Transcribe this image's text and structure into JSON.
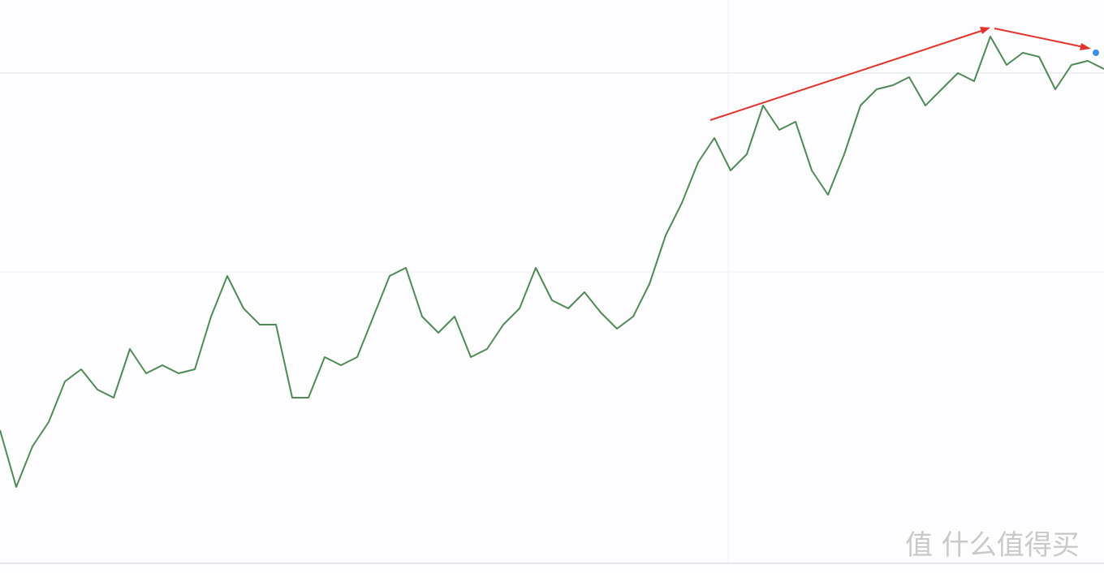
{
  "chart_data": {
    "type": "line",
    "values": [
      176,
      106,
      156,
      186,
      236,
      251,
      226,
      216,
      276,
      246,
      256,
      246,
      251,
      316,
      366,
      326,
      306,
      306,
      216,
      216,
      266,
      256,
      266,
      316,
      366,
      376,
      316,
      296,
      316,
      266,
      276,
      306,
      326,
      376,
      336,
      326,
      346,
      321,
      301,
      316,
      356,
      416,
      456,
      506,
      536,
      496,
      516,
      576,
      546,
      556,
      496,
      466,
      516,
      576,
      596,
      601,
      611,
      576,
      596,
      616,
      606,
      661,
      626,
      641,
      636,
      596,
      626,
      631,
      621
    ],
    "color": "#4f8a55",
    "ylim": [
      0,
      706
    ],
    "watermark": "值 什么值得买"
  }
}
